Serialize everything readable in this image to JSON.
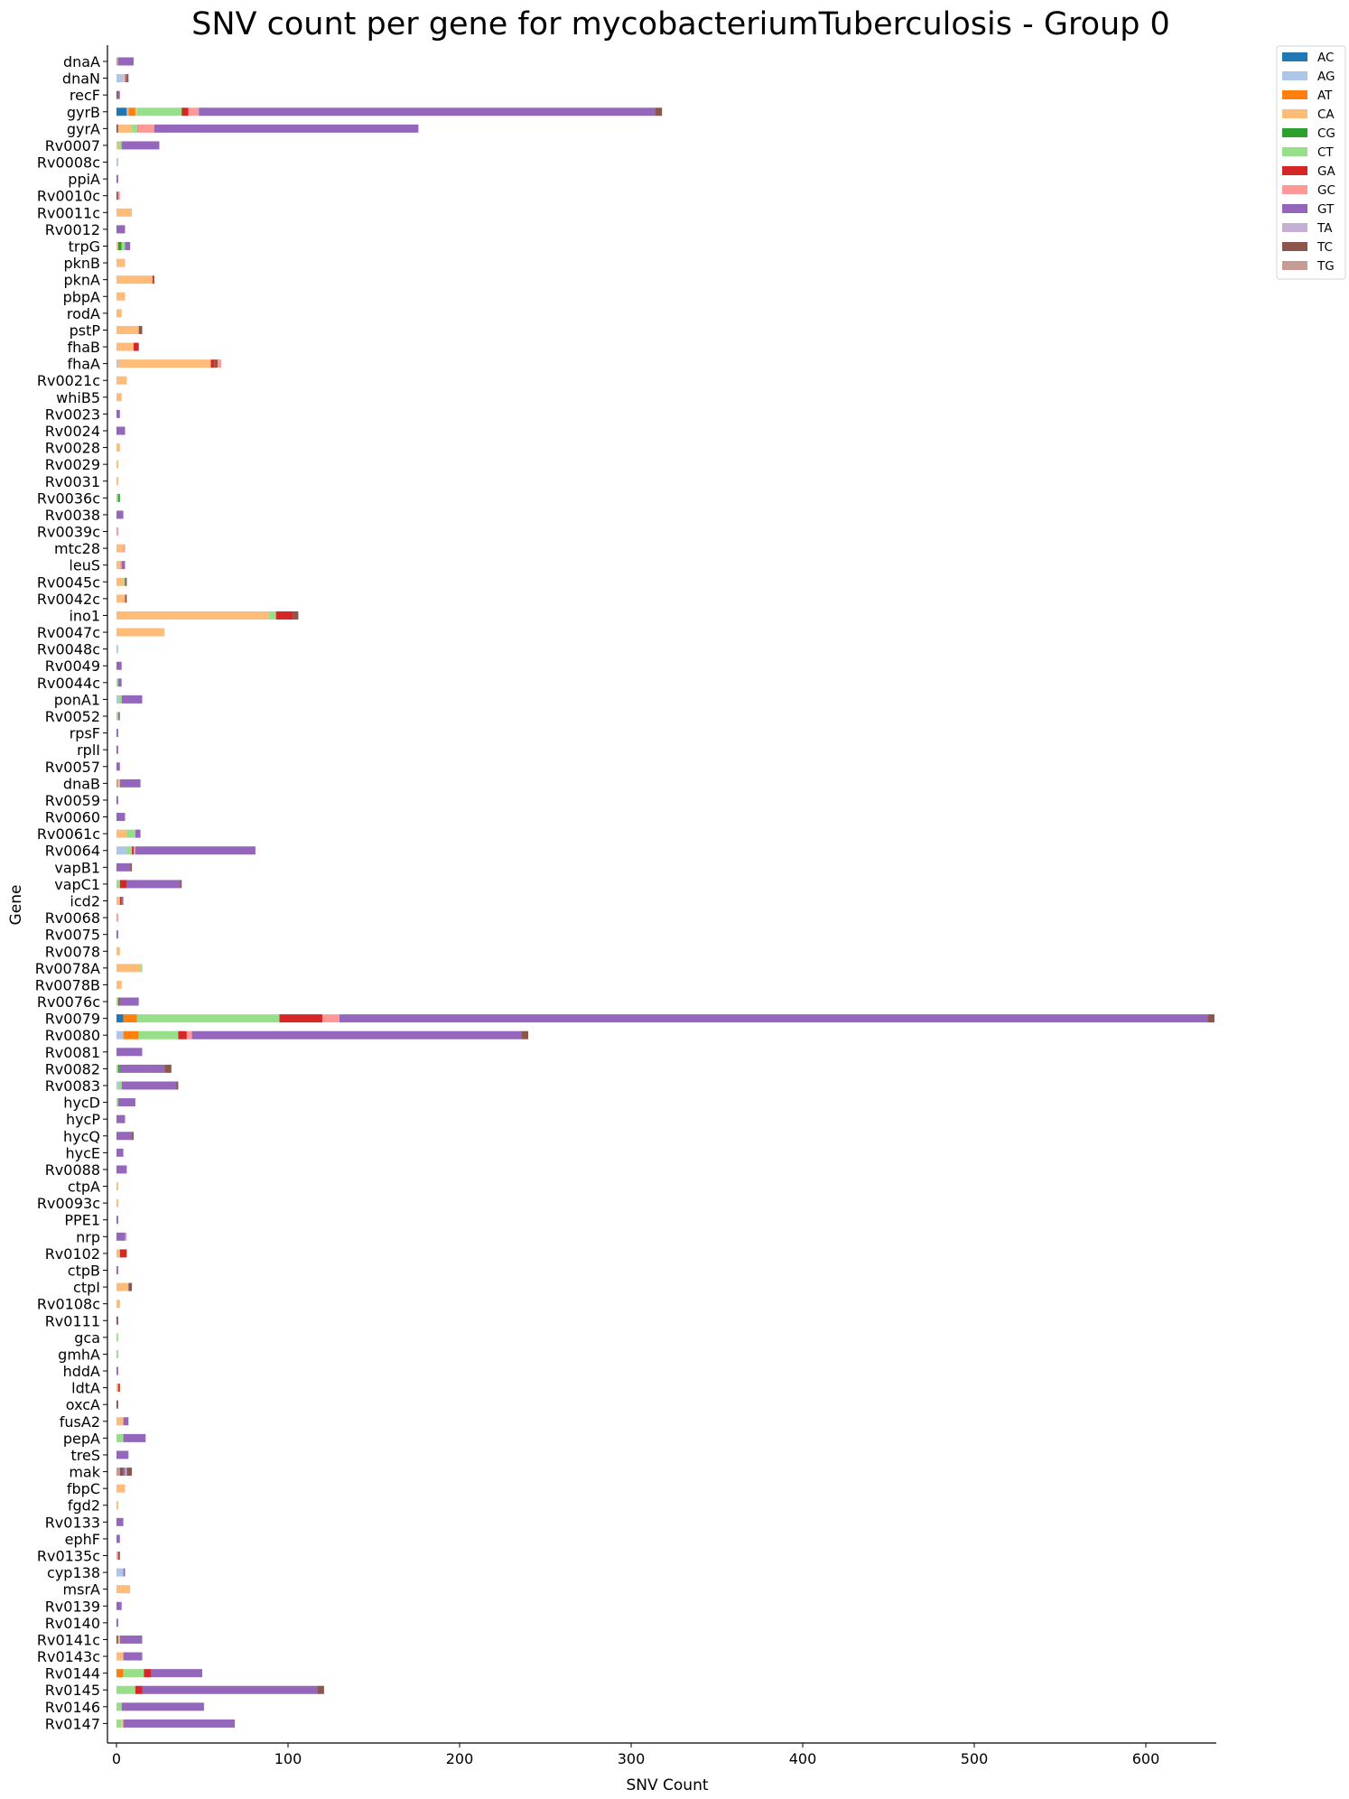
{
  "chart_data": {
    "type": "bar",
    "orientation": "horizontal",
    "stacked": true,
    "title": "SNV count per gene for mycobacteriumTuberculosis - Group 0",
    "xlabel": "SNV Count",
    "ylabel": "Gene",
    "xlim": [
      -5,
      640
    ],
    "x_ticks": [
      0,
      100,
      200,
      300,
      400,
      500,
      600
    ],
    "legend_position": "top-right outside",
    "grid": false,
    "series": [
      {
        "name": "AC",
        "color": "#1f77b4"
      },
      {
        "name": "AG",
        "color": "#aec7e8"
      },
      {
        "name": "AT",
        "color": "#ff7f0e"
      },
      {
        "name": "CA",
        "color": "#ffbb78"
      },
      {
        "name": "CG",
        "color": "#2ca02c"
      },
      {
        "name": "CT",
        "color": "#98df8a"
      },
      {
        "name": "GA",
        "color": "#d62728"
      },
      {
        "name": "GC",
        "color": "#ff9896"
      },
      {
        "name": "GT",
        "color": "#9467bd"
      },
      {
        "name": "TA",
        "color": "#c5b0d5"
      },
      {
        "name": "TC",
        "color": "#8c564b"
      },
      {
        "name": "TG",
        "color": "#c49c94"
      }
    ],
    "genes": [
      {
        "name": "dnaA",
        "segments": {
          "TG": 1,
          "GT": 9
        }
      },
      {
        "name": "dnaN",
        "segments": {
          "AG": 4,
          "CA": 1,
          "GT": 1,
          "TC": 1
        }
      },
      {
        "name": "recF",
        "segments": {
          "TC": 1,
          "GT": 1
        }
      },
      {
        "name": "gyrB",
        "segments": {
          "AC": 6,
          "AG": 1,
          "AT": 4,
          "CA": 1,
          "CT": 26,
          "GA": 4,
          "GC": 6,
          "GT": 266,
          "TC": 4
        }
      },
      {
        "name": "gyrA",
        "segments": {
          "TC": 1,
          "CA": 8,
          "CT": 3,
          "TG": 1,
          "GC": 9,
          "GT": 154
        }
      },
      {
        "name": "Rv0007",
        "segments": {
          "CA": 1,
          "CT": 2,
          "GT": 22
        }
      },
      {
        "name": "Rv0008c",
        "segments": {
          "AG": 1
        }
      },
      {
        "name": "ppiA",
        "segments": {
          "GT": 1
        }
      },
      {
        "name": "Rv0010c",
        "segments": {
          "TC": 1,
          "GC": 1
        }
      },
      {
        "name": "Rv0011c",
        "segments": {
          "CA": 9
        }
      },
      {
        "name": "Rv0012",
        "segments": {
          "GT": 5
        }
      },
      {
        "name": "trpG",
        "segments": {
          "CA": 1,
          "CG": 2,
          "CT": 2,
          "GT": 3
        }
      },
      {
        "name": "pknB",
        "segments": {
          "CA": 5
        }
      },
      {
        "name": "pknA",
        "segments": {
          "CA": 21,
          "GA": 1
        }
      },
      {
        "name": "pbpA",
        "segments": {
          "CA": 5
        }
      },
      {
        "name": "rodA",
        "segments": {
          "CA": 3
        }
      },
      {
        "name": "pstP",
        "segments": {
          "CA": 13,
          "TC": 2
        }
      },
      {
        "name": "fhaB",
        "segments": {
          "CA": 10,
          "GA": 3
        }
      },
      {
        "name": "fhaA",
        "segments": {
          "AG": 1,
          "CA": 54,
          "GA": 2,
          "TC": 2,
          "GC": 2
        }
      },
      {
        "name": "Rv0021c",
        "segments": {
          "CA": 6
        }
      },
      {
        "name": "whiB5",
        "segments": {
          "CA": 3
        }
      },
      {
        "name": "Rv0023",
        "segments": {
          "GT": 2
        }
      },
      {
        "name": "Rv0024",
        "segments": {
          "GT": 5
        }
      },
      {
        "name": "Rv0028",
        "segments": {
          "CA": 2
        }
      },
      {
        "name": "Rv0029",
        "segments": {
          "CA": 1
        }
      },
      {
        "name": "Rv0031",
        "segments": {
          "CA": 1
        }
      },
      {
        "name": "Rv0036c",
        "segments": {
          "CT": 1,
          "CG": 1
        }
      },
      {
        "name": "Rv0038",
        "segments": {
          "GT": 4
        }
      },
      {
        "name": "Rv0039c",
        "segments": {
          "GC": 1
        }
      },
      {
        "name": "mtc28",
        "segments": {
          "CA": 4,
          "GC": 1
        }
      },
      {
        "name": "leuS",
        "segments": {
          "CA": 2,
          "GC": 1,
          "GT": 2
        }
      },
      {
        "name": "Rv0045c",
        "segments": {
          "CA": 4,
          "CT": 1,
          "TC": 1
        }
      },
      {
        "name": "Rv0042c",
        "segments": {
          "CA": 5,
          "TC": 1
        }
      },
      {
        "name": "ino1",
        "segments": {
          "CA": 89,
          "CT": 4,
          "GA": 10,
          "TC": 3
        }
      },
      {
        "name": "Rv0047c",
        "segments": {
          "CA": 28
        }
      },
      {
        "name": "Rv0048c",
        "segments": {
          "AG": 1
        }
      },
      {
        "name": "Rv0049",
        "segments": {
          "GT": 3
        }
      },
      {
        "name": "Rv0044c",
        "segments": {
          "CT": 1,
          "GT": 2
        }
      },
      {
        "name": "ponA1",
        "segments": {
          "AG": 1,
          "CT": 2,
          "GT": 12
        }
      },
      {
        "name": "Rv0052",
        "segments": {
          "CT": 1,
          "GT": 1
        }
      },
      {
        "name": "rpsF",
        "segments": {
          "GT": 1
        }
      },
      {
        "name": "rplI",
        "segments": {
          "GT": 1
        }
      },
      {
        "name": "Rv0057",
        "segments": {
          "GT": 2
        }
      },
      {
        "name": "dnaB",
        "segments": {
          "TG": 1,
          "CA": 1,
          "GT": 12
        }
      },
      {
        "name": "Rv0059",
        "segments": {
          "GT": 1
        }
      },
      {
        "name": "Rv0060",
        "segments": {
          "GT": 5
        }
      },
      {
        "name": "Rv0061c",
        "segments": {
          "CA": 6,
          "CT": 5,
          "GT": 3
        }
      },
      {
        "name": "Rv0064",
        "segments": {
          "AG": 6,
          "CT": 3,
          "GA": 1,
          "GC": 1,
          "GT": 70
        }
      },
      {
        "name": "vapB1",
        "segments": {
          "GT": 8,
          "TC": 1
        }
      },
      {
        "name": "vapC1",
        "segments": {
          "CT": 2,
          "GA": 4,
          "GT": 31,
          "TC": 1
        }
      },
      {
        "name": "icd2",
        "segments": {
          "CA": 2,
          "GA": 1,
          "GT": 1
        }
      },
      {
        "name": "Rv0068",
        "segments": {
          "GC": 1
        }
      },
      {
        "name": "Rv0075",
        "segments": {
          "GT": 1
        }
      },
      {
        "name": "Rv0078",
        "segments": {
          "CA": 2
        }
      },
      {
        "name": "Rv0078A",
        "segments": {
          "CA": 14,
          "CT": 1
        }
      },
      {
        "name": "Rv0078B",
        "segments": {
          "CA": 3
        }
      },
      {
        "name": "Rv0076c",
        "segments": {
          "CT": 1,
          "TC": 1,
          "GT": 11
        }
      },
      {
        "name": "Rv0079",
        "segments": {
          "AC": 4,
          "AT": 8,
          "CT": 83,
          "GA": 25,
          "GC": 10,
          "GT": 506,
          "TC": 4
        }
      },
      {
        "name": "Rv0080",
        "segments": {
          "AG": 4,
          "AT": 9,
          "CT": 23,
          "GA": 5,
          "GC": 3,
          "GT": 192,
          "TC": 4
        }
      },
      {
        "name": "Rv0081",
        "segments": {
          "GT": 15
        }
      },
      {
        "name": "Rv0082",
        "segments": {
          "CT": 1,
          "CG": 1,
          "GT": 26,
          "TC": 4
        }
      },
      {
        "name": "Rv0083",
        "segments": {
          "AG": 1,
          "CT": 2,
          "GT": 32,
          "TC": 1
        }
      },
      {
        "name": "hycD",
        "segments": {
          "CT": 1,
          "GT": 10
        }
      },
      {
        "name": "hycP",
        "segments": {
          "GT": 5
        }
      },
      {
        "name": "hycQ",
        "segments": {
          "GT": 9,
          "TC": 1
        }
      },
      {
        "name": "hycE",
        "segments": {
          "GT": 4
        }
      },
      {
        "name": "Rv0088",
        "segments": {
          "GT": 6
        }
      },
      {
        "name": "ctpA",
        "segments": {
          "CA": 1
        }
      },
      {
        "name": "Rv0093c",
        "segments": {
          "CA": 1
        }
      },
      {
        "name": "PPE1",
        "segments": {
          "GT": 1
        }
      },
      {
        "name": "nrp",
        "segments": {
          "GT": 5,
          "TA": 1
        }
      },
      {
        "name": "Rv0102",
        "segments": {
          "CA": 2,
          "GA": 4
        }
      },
      {
        "name": "ctpB",
        "segments": {
          "GT": 1
        }
      },
      {
        "name": "ctpI",
        "segments": {
          "CA": 7,
          "TC": 2
        }
      },
      {
        "name": "Rv0108c",
        "segments": {
          "CA": 2
        }
      },
      {
        "name": "Rv0111",
        "segments": {
          "TC": 1
        }
      },
      {
        "name": "gca",
        "segments": {
          "CT": 1
        }
      },
      {
        "name": "gmhA",
        "segments": {
          "CT": 1
        }
      },
      {
        "name": "hddA",
        "segments": {
          "GT": 1
        }
      },
      {
        "name": "ldtA",
        "segments": {
          "CA": 1,
          "GA": 1
        }
      },
      {
        "name": "oxcA",
        "segments": {
          "TC": 1
        }
      },
      {
        "name": "fusA2",
        "segments": {
          "CA": 4,
          "GT": 3
        }
      },
      {
        "name": "pepA",
        "segments": {
          "CT": 4,
          "GT": 13
        }
      },
      {
        "name": "treS",
        "segments": {
          "GT": 7
        }
      },
      {
        "name": "mak",
        "segments": {
          "TG": 2,
          "TC": 2,
          "GT": 1,
          "TA": 1,
          "TC_2": 3
        }
      },
      {
        "name": "fbpC",
        "segments": {
          "CA": 5
        }
      },
      {
        "name": "fgd2",
        "segments": {
          "CA": 1
        }
      },
      {
        "name": "Rv0133",
        "segments": {
          "GT": 4
        }
      },
      {
        "name": "ephF",
        "segments": {
          "GT": 2
        }
      },
      {
        "name": "Rv0135c",
        "segments": {
          "GC": 1,
          "TC": 1
        }
      },
      {
        "name": "cyp138",
        "segments": {
          "AG": 4,
          "GT": 1
        }
      },
      {
        "name": "msrA",
        "segments": {
          "CA": 8
        }
      },
      {
        "name": "Rv0139",
        "segments": {
          "GT": 3
        }
      },
      {
        "name": "Rv0140",
        "segments": {
          "GT": 1
        }
      },
      {
        "name": "Rv0141c",
        "segments": {
          "TC": 1,
          "CA": 1,
          "GT": 13
        }
      },
      {
        "name": "Rv0143c",
        "segments": {
          "CA": 4,
          "GT": 11
        }
      },
      {
        "name": "Rv0144",
        "segments": {
          "AT": 4,
          "CT": 12,
          "GA": 4,
          "GT": 30
        }
      },
      {
        "name": "Rv0145",
        "segments": {
          "CT": 11,
          "GA": 4,
          "GT": 102,
          "TC": 4
        }
      },
      {
        "name": "Rv0146",
        "segments": {
          "CT": 3,
          "GT": 48
        }
      },
      {
        "name": "Rv0147",
        "segments": {
          "CT": 3,
          "CA": 1,
          "GT": 65
        }
      }
    ]
  }
}
